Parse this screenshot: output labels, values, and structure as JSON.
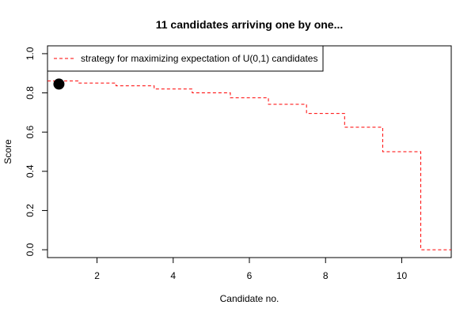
{
  "chart_data": {
    "type": "line",
    "title": "11 candidates arriving one by one...",
    "xlabel": "Candidate no.",
    "ylabel": "Score",
    "xlim": [
      0.7,
      11.3
    ],
    "ylim": [
      -0.04,
      1.04
    ],
    "x_ticks": [
      2,
      4,
      6,
      8,
      10
    ],
    "y_ticks": [
      0.0,
      0.2,
      0.4,
      0.6,
      0.8,
      1.0
    ],
    "y_tick_labels": [
      "0.0",
      "0.2",
      "0.4",
      "0.6",
      "0.8",
      "1.0"
    ],
    "x_tick_labels": [
      "2",
      "4",
      "6",
      "8",
      "10"
    ],
    "grid": false,
    "legend_position": "top-left",
    "series": [
      {
        "name": "strategy for maximizing expectation of U(0,1) candidates",
        "style": "step-dashed",
        "color": "#ff0000",
        "x": [
          1,
          2,
          3,
          4,
          5,
          6,
          7,
          8,
          9,
          10,
          11
        ],
        "y": [
          0.861,
          0.85,
          0.836,
          0.82,
          0.8,
          0.775,
          0.742,
          0.695,
          0.625,
          0.5,
          0.0
        ]
      }
    ],
    "points": [
      {
        "x": 1,
        "y": 0.845,
        "color": "#000000"
      }
    ]
  }
}
